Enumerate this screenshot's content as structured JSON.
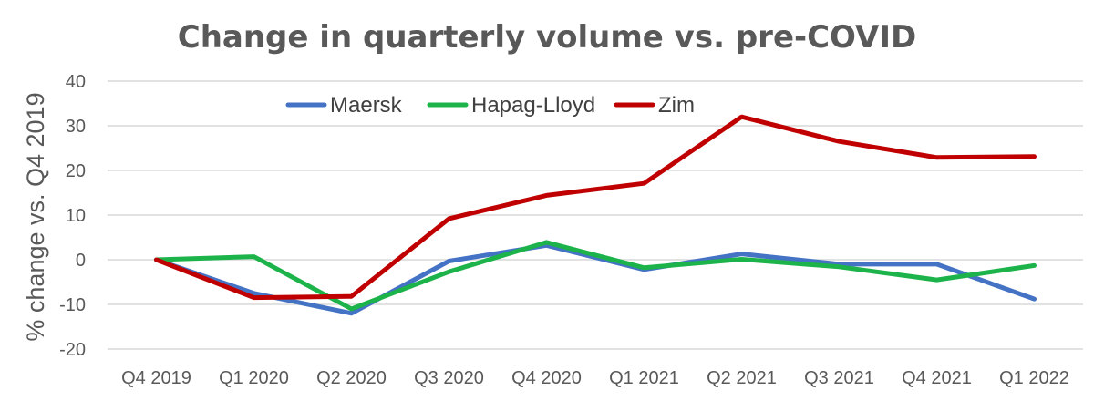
{
  "chart_data": {
    "type": "line",
    "title": "Change in quarterly volume vs. pre-COVID",
    "xlabel": "",
    "ylabel": "% change vs. Q4 2019",
    "ylim": [
      -20,
      40
    ],
    "yticks": [
      "-20",
      "-10",
      "0",
      "10",
      "20",
      "30",
      "40"
    ],
    "grid": true,
    "legend_position": "top-left",
    "categories": [
      "Q4 2019",
      "Q1 2020",
      "Q2 2020",
      "Q3 2020",
      "Q4 2020",
      "Q1 2021",
      "Q2 2021",
      "Q3 2021",
      "Q4 2021",
      "Q1 2022"
    ],
    "series": [
      {
        "name": "Maersk",
        "color": "#4472C4",
        "values": [
          0,
          -7.5,
          -12,
          -0.3,
          3.2,
          -2.2,
          1.3,
          -1.0,
          -1.0,
          -8.8
        ]
      },
      {
        "name": "Hapag-Lloyd",
        "color": "#1DB34B",
        "values": [
          0,
          0.7,
          -11,
          -2.7,
          3.9,
          -1.8,
          0.1,
          -1.6,
          -4.5,
          -1.3
        ]
      },
      {
        "name": "Zim",
        "color": "#C00000",
        "values": [
          0,
          -8.5,
          -8.2,
          9.2,
          14.4,
          17.1,
          32.0,
          26.5,
          22.9,
          23.1
        ]
      }
    ]
  }
}
